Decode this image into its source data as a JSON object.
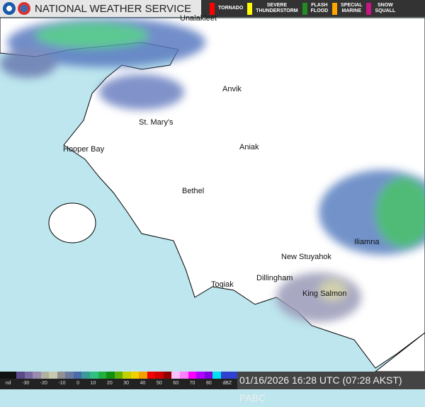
{
  "header": {
    "title": "NATIONAL WEATHER SERVICE",
    "logos": [
      "noaa-logo",
      "nws-logo"
    ]
  },
  "warnings": [
    {
      "label": "TORNADO",
      "color": "#ff0000"
    },
    {
      "label": "SEVERE\nTHUNDERSTORM",
      "color": "#ffff00"
    },
    {
      "label": "FLASH\nFLOOD",
      "color": "#228b22"
    },
    {
      "label": "SPECIAL\nMARINE",
      "color": "#ffa500"
    },
    {
      "label": "SNOW\nSQUALL",
      "color": "#c71585"
    }
  ],
  "cities": [
    "Unalakleet",
    "Anvik",
    "St. Mary's",
    "Hooper Bay",
    "Aniak",
    "Bethel",
    "Iliamna",
    "New Stuyahok",
    "Dillingham",
    "Togiak",
    "King Salmon"
  ],
  "legend": {
    "ticks": [
      "nd",
      "-30",
      "-20",
      "-10",
      "0",
      "10",
      "20",
      "30",
      "40",
      "50",
      "60",
      "70",
      "80",
      "dBZ"
    ],
    "colors": [
      "#111",
      "#111",
      "#5a4a8a",
      "#7a6aa0",
      "#9a8ab0",
      "#b0b0a0",
      "#c8c8b0",
      "#909090",
      "#6a7aa0",
      "#4a6aa8",
      "#3a9a9a",
      "#30c080",
      "#20b040",
      "#109010",
      "#60b000",
      "#c0d000",
      "#f0d000",
      "#f0a000",
      "#f00000",
      "#d00000",
      "#900000",
      "#ffc0ff",
      "#ff80ff",
      "#ff00ff",
      "#b000ff",
      "#8000e0",
      "#00e0f0",
      "#3040d0",
      "#3040d0"
    ]
  },
  "timestamp": "01/16/2026 16:28 UTC (07:28 AKST)  PABC",
  "colors": {
    "water": "#bde6ee",
    "land": "#ffffff"
  }
}
